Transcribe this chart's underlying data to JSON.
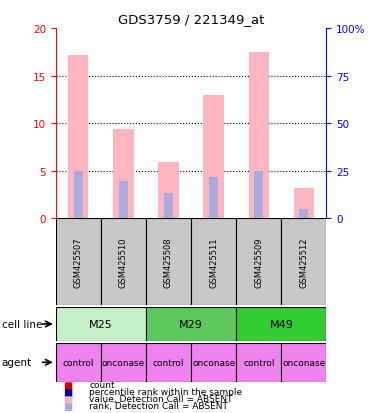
{
  "title": "GDS3759 / 221349_at",
  "samples": [
    "GSM425507",
    "GSM425510",
    "GSM425508",
    "GSM425511",
    "GSM425509",
    "GSM425512"
  ],
  "bar_heights_pink": [
    17.2,
    9.4,
    5.9,
    13.0,
    17.5,
    3.2
  ],
  "rank_heights_blue": [
    5.0,
    3.9,
    2.7,
    4.4,
    5.0,
    1.0
  ],
  "ylim_left": [
    0,
    20
  ],
  "ylim_right": [
    0,
    100
  ],
  "yticks_left": [
    0,
    5,
    10,
    15,
    20
  ],
  "yticks_right": [
    0,
    25,
    50,
    75,
    100
  ],
  "ytick_labels_right": [
    "0",
    "25",
    "50",
    "75",
    "100%"
  ],
  "cell_line_data": [
    {
      "name": "M25",
      "start": 0,
      "end": 2,
      "color": "#C8F0C8"
    },
    {
      "name": "M29",
      "start": 2,
      "end": 4,
      "color": "#5DC85D"
    },
    {
      "name": "M49",
      "start": 4,
      "end": 6,
      "color": "#33CC33"
    }
  ],
  "agents": [
    "control",
    "onconase",
    "control",
    "onconase",
    "control",
    "onconase"
  ],
  "agent_color": "#EE82EE",
  "bar_color_pink": "#FFB6C1",
  "bar_color_blue": "#AAAADD",
  "legend_items": [
    {
      "label": "count",
      "color": "#CC0000"
    },
    {
      "label": "percentile rank within the sample",
      "color": "#000099"
    },
    {
      "label": "value, Detection Call = ABSENT",
      "color": "#FFB6C1"
    },
    {
      "label": "rank, Detection Call = ABSENT",
      "color": "#AAAADD"
    }
  ]
}
